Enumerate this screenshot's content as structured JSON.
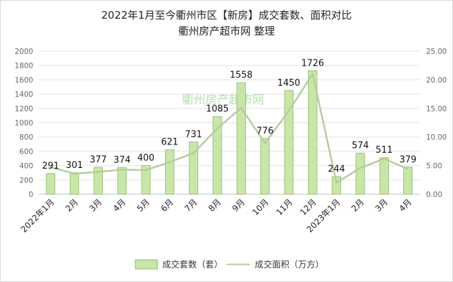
{
  "chart_data": {
    "type": "bar",
    "title": "2022年1月至今衢州市区【新房】成交套数、面积对比",
    "subtitle": "衢州房产超市网 整理",
    "watermark": "衢州房产超市网",
    "categories": [
      "2022年1月",
      "2月",
      "3月",
      "4月",
      "5月",
      "6月",
      "7月",
      "8月",
      "9月",
      "10月",
      "11月",
      "12月",
      "2023年1月",
      "2月",
      "3月",
      "4月"
    ],
    "series": [
      {
        "name": "成交套数（套）",
        "kind": "bar",
        "axis": "left",
        "color": "#c9e6a8",
        "values": [
          291,
          301,
          377,
          374,
          400,
          621,
          731,
          1085,
          1558,
          776,
          1450,
          1726,
          244,
          574,
          511,
          379
        ]
      },
      {
        "name": "成交面积（万方）",
        "kind": "line",
        "axis": "right",
        "color": "#b5cc9f",
        "values": [
          4.7,
          3.6,
          3.9,
          4.3,
          4.2,
          5.6,
          7.2,
          11.5,
          15.1,
          8.9,
          14.6,
          21.0,
          2.0,
          4.6,
          6.2,
          4.4
        ]
      }
    ],
    "ylim_left": [
      0,
      2000
    ],
    "ylim_right": [
      0,
      25
    ],
    "left_ticks": [
      "0",
      "200",
      "400",
      "600",
      "800",
      "1000",
      "1200",
      "1400",
      "1600",
      "1800",
      "2000"
    ],
    "right_ticks": [
      "0.00",
      "5.00",
      "10.00",
      "15.00",
      "20.00",
      "25.00"
    ],
    "grid": true,
    "legend_position": "bottom"
  }
}
